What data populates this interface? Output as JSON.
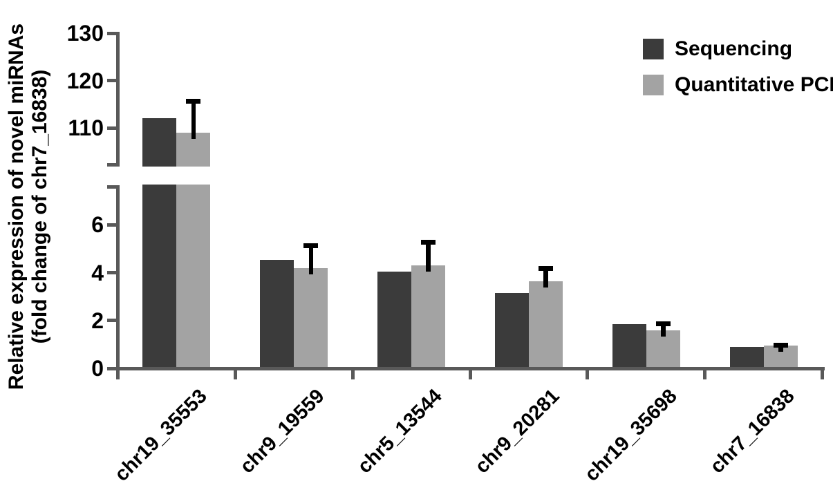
{
  "page": {
    "background": "#ffffff"
  },
  "y_axis": {
    "title_line1": "Relative expression of novel miRNAs",
    "title_line2": "(fold change of chr7_16838)",
    "upper_tick_labels": [
      "110",
      "120",
      "130"
    ],
    "lower_tick_labels": [
      "0",
      "2",
      "4",
      "6"
    ]
  },
  "legend": {
    "items": [
      {
        "label": "Sequencing",
        "color": "#3b3b3b"
      },
      {
        "label": "Quantitative PCR",
        "color": "#a3a3a3"
      }
    ]
  },
  "chart_data": {
    "type": "bar",
    "title": "",
    "ylabel": "Relative expression of novel miRNAs (fold change of chr7_16838)",
    "xlabel": "",
    "categories": [
      "chr19_35553",
      "chr9_19559",
      "chr5_13544",
      "chr9_20281",
      "chr19_35698",
      "chr7_16838"
    ],
    "series": [
      {
        "name": "Sequencing",
        "color": "#3b3b3b",
        "values": [
          112,
          4.55,
          4.05,
          3.15,
          1.85,
          0.9
        ]
      },
      {
        "name": "Quantitative PCR",
        "color": "#a3a3a3",
        "values": [
          109,
          4.2,
          4.3,
          3.65,
          1.6,
          0.95
        ],
        "error_upper": [
          7,
          1.0,
          1.05,
          0.6,
          0.35,
          0.1
        ]
      }
    ],
    "broken_y_axis": {
      "lower_ticks": [
        0,
        2,
        4,
        6
      ],
      "upper_ticks": [
        110,
        120,
        130
      ],
      "lower_range": [
        0,
        7.66
      ],
      "upper_range": [
        103,
        131
      ]
    },
    "axis_color": "#595959",
    "error_bar_color": "#000000",
    "grid": false,
    "legend_position": "top-right"
  }
}
